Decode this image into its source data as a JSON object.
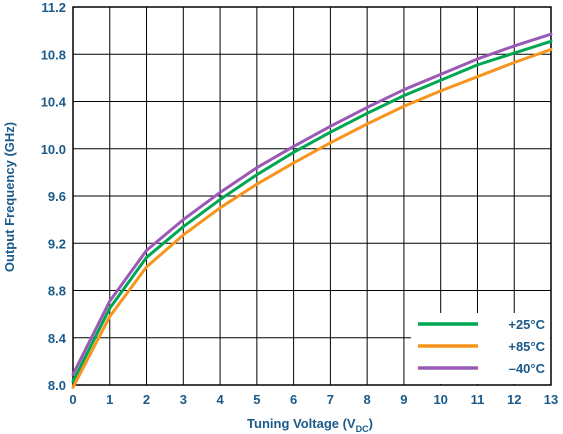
{
  "chart_data": {
    "type": "line",
    "xlabel": {
      "main": "Tuning Voltage (V",
      "sub": "DC",
      "end": ")"
    },
    "ylabel": "Output Frequency (GHz)",
    "xlim": [
      0,
      13
    ],
    "ylim": [
      8.0,
      11.2
    ],
    "grid": true,
    "legend_position": "bottom-right",
    "x_ticks": [
      "0",
      "1",
      "2",
      "3",
      "4",
      "5",
      "6",
      "7",
      "8",
      "9",
      "10",
      "11",
      "12",
      "13"
    ],
    "y_ticks": [
      "8.0",
      "8.4",
      "8.8",
      "9.2",
      "9.6",
      "10.0",
      "10.4",
      "10.8",
      "11.2"
    ],
    "x": [
      0,
      1,
      2,
      3,
      4,
      5,
      6,
      7,
      8,
      9,
      10,
      11,
      12,
      13
    ],
    "series": [
      {
        "name": "+25°C",
        "color": "#00a651",
        "values": [
          8.03,
          8.65,
          9.08,
          9.34,
          9.57,
          9.78,
          9.97,
          10.14,
          10.3,
          10.45,
          10.58,
          10.71,
          10.81,
          10.91
        ]
      },
      {
        "name": "+85°C",
        "color": "#f7941d",
        "values": [
          7.98,
          8.58,
          9.0,
          9.27,
          9.5,
          9.7,
          9.88,
          10.05,
          10.21,
          10.36,
          10.49,
          10.61,
          10.73,
          10.84
        ]
      },
      {
        "name": "–40°C",
        "color": "#9b59b6",
        "values": [
          8.09,
          8.71,
          9.14,
          9.4,
          9.63,
          9.84,
          10.02,
          10.19,
          10.35,
          10.5,
          10.63,
          10.76,
          10.87,
          10.97
        ]
      }
    ]
  }
}
